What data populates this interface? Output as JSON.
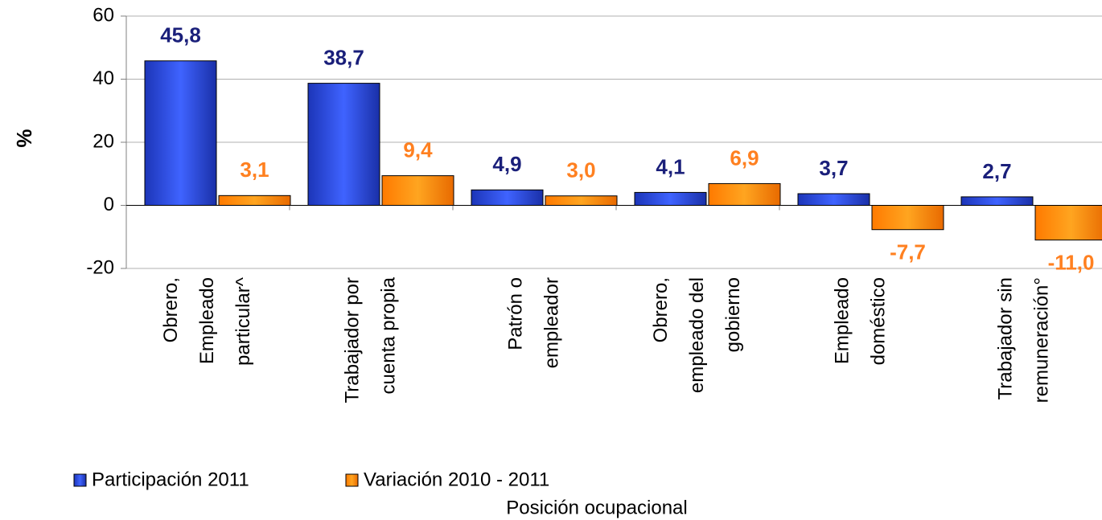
{
  "chart_data": {
    "type": "bar",
    "y_label": "%",
    "x_label": "Posición ocupacional",
    "categories": [
      [
        "Obrero,",
        "Empleado",
        "particular^"
      ],
      [
        "Trabajador por",
        "cuenta propia"
      ],
      [
        "Patrón o",
        "empleador"
      ],
      [
        "Obrero,",
        "empleado del",
        "gobierno"
      ],
      [
        "Empleado",
        "doméstico"
      ],
      [
        "Trabajador sin",
        "remuneración°"
      ]
    ],
    "series": [
      {
        "name": "Participación 2011",
        "color": "#2e4fe0",
        "label_color": "#1a1f7a",
        "values": [
          45.8,
          38.7,
          4.9,
          4.1,
          3.7,
          2.7
        ],
        "value_labels": [
          "45,8",
          "38,7",
          "4,9",
          "4,1",
          "3,7",
          "2,7"
        ]
      },
      {
        "name": "Variación 2010 - 2011",
        "color": "#ff9300",
        "label_color": "#ff8020",
        "values": [
          3.1,
          9.4,
          3.0,
          6.9,
          -7.7,
          -11.0
        ],
        "value_labels": [
          "3,1",
          "9,4",
          "3,0",
          "6,9",
          "-7,7",
          "-11,0"
        ]
      }
    ],
    "ylim": [
      -20,
      60
    ],
    "yticks": [
      -20,
      0,
      20,
      40,
      60
    ],
    "grid": true
  }
}
